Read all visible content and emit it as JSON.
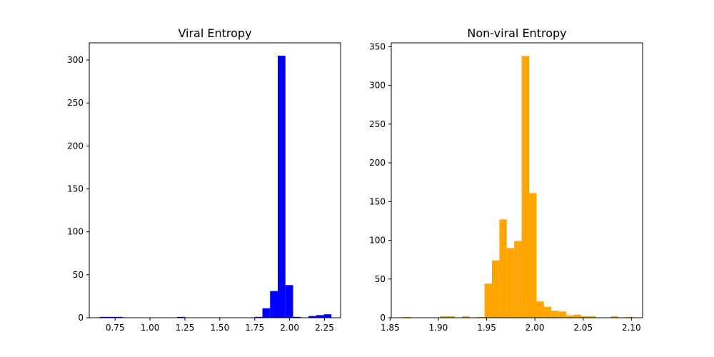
{
  "chart_data": [
    {
      "type": "bar",
      "title": "Viral Entropy",
      "xlabel": "",
      "ylabel": "",
      "color": "#0000ff",
      "xlim": [
        0.565,
        2.365
      ],
      "ylim": [
        0,
        320
      ],
      "xticks": [
        0.75,
        1.0,
        1.25,
        1.5,
        1.75,
        2.0,
        2.25
      ],
      "xtick_labels": [
        "0.75",
        "1.00",
        "1.25",
        "1.50",
        "1.75",
        "2.00",
        "2.25"
      ],
      "yticks": [
        0,
        50,
        100,
        150,
        200,
        250,
        300
      ],
      "ytick_labels": [
        "0",
        "50",
        "100",
        "150",
        "200",
        "250",
        "300"
      ],
      "bins": [
        {
          "x0": 0.64,
          "x1": 0.695,
          "count": 1
        },
        {
          "x0": 0.695,
          "x1": 0.75,
          "count": 1
        },
        {
          "x0": 0.75,
          "x1": 0.805,
          "count": 1
        },
        {
          "x0": 1.195,
          "x1": 1.25,
          "count": 1
        },
        {
          "x0": 1.75,
          "x1": 1.805,
          "count": 1
        },
        {
          "x0": 1.805,
          "x1": 1.86,
          "count": 11
        },
        {
          "x0": 1.86,
          "x1": 1.915,
          "count": 31
        },
        {
          "x0": 1.915,
          "x1": 1.97,
          "count": 305
        },
        {
          "x0": 1.97,
          "x1": 2.025,
          "count": 38
        },
        {
          "x0": 2.025,
          "x1": 2.08,
          "count": 1
        },
        {
          "x0": 2.135,
          "x1": 2.19,
          "count": 2
        },
        {
          "x0": 2.19,
          "x1": 2.245,
          "count": 3
        },
        {
          "x0": 2.245,
          "x1": 2.3,
          "count": 4
        }
      ]
    },
    {
      "type": "bar",
      "title": "Non-viral Entropy",
      "xlabel": "",
      "ylabel": "",
      "color": "#ffa500",
      "xlim": [
        1.8512,
        2.1116
      ],
      "ylim": [
        0,
        355
      ],
      "xticks": [
        1.85,
        1.9,
        1.95,
        2.0,
        2.05,
        2.1
      ],
      "xtick_labels": [
        "1.85",
        "1.90",
        "1.95",
        "2.00",
        "2.05",
        "2.10"
      ],
      "yticks": [
        0,
        50,
        100,
        150,
        200,
        250,
        300,
        350
      ],
      "ytick_labels": [
        "0",
        "50",
        "100",
        "150",
        "200",
        "250",
        "300",
        "350"
      ],
      "bins": [
        {
          "x0": 1.8631,
          "x1": 1.8708,
          "count": 1
        },
        {
          "x0": 1.9016,
          "x1": 1.9093,
          "count": 2
        },
        {
          "x0": 1.9093,
          "x1": 1.917,
          "count": 2
        },
        {
          "x0": 1.9247,
          "x1": 1.9324,
          "count": 2
        },
        {
          "x0": 1.9401,
          "x1": 1.9478,
          "count": 1
        },
        {
          "x0": 1.9478,
          "x1": 1.9555,
          "count": 44
        },
        {
          "x0": 1.9555,
          "x1": 1.9632,
          "count": 74
        },
        {
          "x0": 1.9632,
          "x1": 1.9709,
          "count": 127
        },
        {
          "x0": 1.9709,
          "x1": 1.9786,
          "count": 90
        },
        {
          "x0": 1.9786,
          "x1": 1.9863,
          "count": 99
        },
        {
          "x0": 1.9863,
          "x1": 1.994,
          "count": 338
        },
        {
          "x0": 1.994,
          "x1": 2.0017,
          "count": 161
        },
        {
          "x0": 2.0017,
          "x1": 2.0094,
          "count": 21
        },
        {
          "x0": 2.0094,
          "x1": 2.0171,
          "count": 14
        },
        {
          "x0": 2.0171,
          "x1": 2.0248,
          "count": 9
        },
        {
          "x0": 2.0248,
          "x1": 2.0325,
          "count": 8
        },
        {
          "x0": 2.0325,
          "x1": 2.0402,
          "count": 3
        },
        {
          "x0": 2.0402,
          "x1": 2.0479,
          "count": 4
        },
        {
          "x0": 2.0479,
          "x1": 2.0556,
          "count": 2
        },
        {
          "x0": 2.0556,
          "x1": 2.0633,
          "count": 2
        },
        {
          "x0": 2.0787,
          "x1": 2.0864,
          "count": 2
        },
        {
          "x0": 2.0941,
          "x1": 2.1018,
          "count": 1
        }
      ]
    }
  ]
}
